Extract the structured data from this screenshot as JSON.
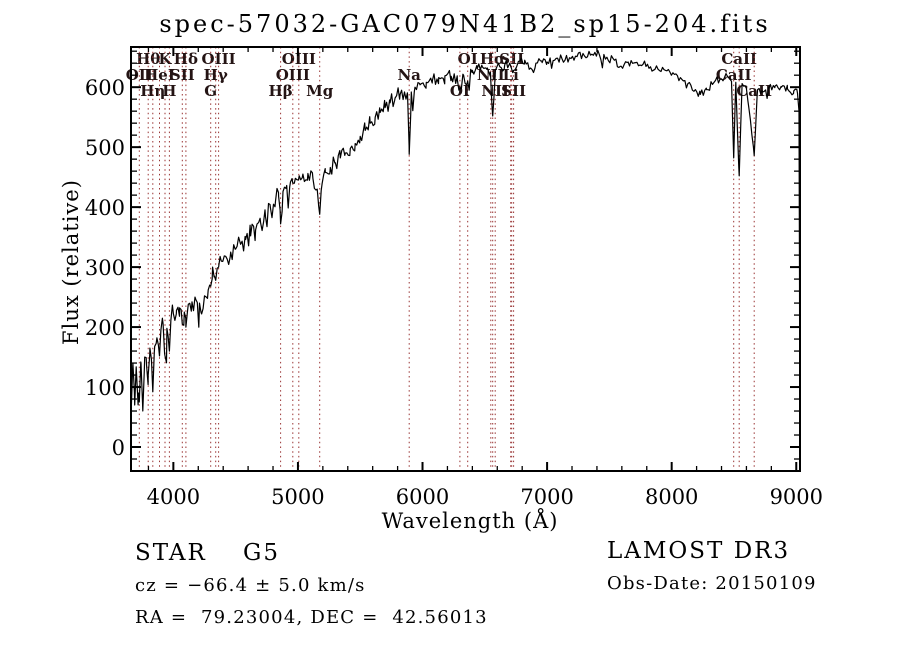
{
  "title": "spec-57032-GAC079N41B2_sp15-204.fits",
  "colors": {
    "background": "#ffffff",
    "spectrum": "#000000",
    "axis": "#000000",
    "marker_line": "#993333",
    "marker_label": "#241414"
  },
  "footer": {
    "class_label": "STAR",
    "subclass_label": "G5",
    "cz_line": "cz = −66.4 ± 5.0 km/s",
    "radec_line": "RA =  79.23004, DEC =  42.56013",
    "survey": "LAMOST DR3",
    "obs_date": "Obs-Date: 20150109"
  },
  "chart_data": {
    "type": "line",
    "title": "spec-57032-GAC079N41B2_sp15-204.fits",
    "xlabel": "Wavelength (Å)",
    "ylabel": "Flux (relative)",
    "xlim": [
      3660,
      9030
    ],
    "ylim": [
      -40,
      667
    ],
    "xticks": [
      4000,
      5000,
      6000,
      7000,
      8000,
      9000
    ],
    "yticks": [
      0,
      100,
      200,
      300,
      400,
      500,
      600
    ],
    "x_minor_step": 200,
    "y_minor_step": 20,
    "grid": false,
    "legend": "none",
    "line_markers": [
      {
        "label": "Hθ",
        "wavelength": 3798,
        "row": 1
      },
      {
        "label": "K",
        "wavelength": 3933,
        "row": 1
      },
      {
        "label": "Hδ",
        "wavelength": 4101,
        "row": 1
      },
      {
        "label": "OIII",
        "wavelength": 4363,
        "row": 1
      },
      {
        "label": "OIII",
        "wavelength": 5007,
        "row": 1
      },
      {
        "label": "OI",
        "wavelength": 6363,
        "row": 1
      },
      {
        "label": "Hα",
        "wavelength": 6563,
        "row": 1
      },
      {
        "label": "SII",
        "wavelength": 6716,
        "row": 1
      },
      {
        "label": "CaII",
        "wavelength": 8542,
        "row": 1
      },
      {
        "label": "OII",
        "wavelength": 3727,
        "row": 2
      },
      {
        "label": "HeI",
        "wavelength": 3889,
        "row": 2
      },
      {
        "label": "SII",
        "wavelength": 4072,
        "row": 2
      },
      {
        "label": "Hγ",
        "wavelength": 4340,
        "row": 2
      },
      {
        "label": "OIII",
        "wavelength": 4959,
        "row": 2
      },
      {
        "label": "Na",
        "wavelength": 5893,
        "row": 2
      },
      {
        "label": "NII",
        "wavelength": 6548,
        "row": 2
      },
      {
        "label": "Li",
        "wavelength": 6708,
        "row": 2
      },
      {
        "label": "CaII",
        "wavelength": 8498,
        "row": 2
      },
      {
        "label": "Hη",
        "wavelength": 3835,
        "row": 3
      },
      {
        "label": "H",
        "wavelength": 3968,
        "row": 3
      },
      {
        "label": "G",
        "wavelength": 4300,
        "row": 3
      },
      {
        "label": "Hβ",
        "wavelength": 4861,
        "row": 3
      },
      {
        "label": "Mg",
        "wavelength": 5175,
        "row": 3
      },
      {
        "label": "OI",
        "wavelength": 6300,
        "row": 3
      },
      {
        "label": "NII",
        "wavelength": 6583,
        "row": 3
      },
      {
        "label": "SII",
        "wavelength": 6731,
        "row": 3
      },
      {
        "label": "CaII",
        "wavelength": 8662,
        "row": 3
      }
    ],
    "series": [
      {
        "name": "spectrum",
        "anchors": [
          [
            3662,
            60,
            45
          ],
          [
            3675,
            140,
            50
          ],
          [
            3690,
            70,
            45
          ],
          [
            3705,
            120,
            45
          ],
          [
            3720,
            90,
            40
          ],
          [
            3727,
            75,
            35
          ],
          [
            3740,
            140,
            42
          ],
          [
            3755,
            60,
            40
          ],
          [
            3770,
            150,
            40
          ],
          [
            3785,
            135,
            40
          ],
          [
            3798,
            120,
            35
          ],
          [
            3812,
            165,
            40
          ],
          [
            3825,
            140,
            38
          ],
          [
            3835,
            92,
            35
          ],
          [
            3850,
            168,
            38
          ],
          [
            3868,
            182,
            35
          ],
          [
            3880,
            170,
            32
          ],
          [
            3889,
            152,
            30
          ],
          [
            3900,
            195,
            30
          ],
          [
            3918,
            205,
            28
          ],
          [
            3933,
            152,
            24
          ],
          [
            3948,
            198,
            26
          ],
          [
            3958,
            185,
            24
          ],
          [
            3968,
            160,
            24
          ],
          [
            3980,
            212,
            26
          ],
          [
            4000,
            222,
            26
          ],
          [
            4025,
            228,
            26
          ],
          [
            4050,
            232,
            26
          ],
          [
            4072,
            205,
            24
          ],
          [
            4088,
            225,
            24
          ],
          [
            4101,
            200,
            24
          ],
          [
            4120,
            238,
            24
          ],
          [
            4150,
            242,
            24
          ],
          [
            4180,
            246,
            24
          ],
          [
            4210,
            240,
            24
          ],
          [
            4227,
            222,
            22
          ],
          [
            4250,
            252,
            24
          ],
          [
            4280,
            262,
            24
          ],
          [
            4300,
            268,
            22
          ],
          [
            4315,
            300,
            24
          ],
          [
            4330,
            285,
            24
          ],
          [
            4340,
            278,
            22
          ],
          [
            4352,
            298,
            24
          ],
          [
            4363,
            300,
            22
          ],
          [
            4385,
            310,
            24
          ],
          [
            4420,
            318,
            24
          ],
          [
            4460,
            325,
            24
          ],
          [
            4500,
            330,
            26
          ],
          [
            4540,
            338,
            26
          ],
          [
            4580,
            346,
            26
          ],
          [
            4620,
            352,
            26
          ],
          [
            4660,
            362,
            26
          ],
          [
            4700,
            374,
            26
          ],
          [
            4740,
            384,
            26
          ],
          [
            4780,
            398,
            26
          ],
          [
            4820,
            410,
            24
          ],
          [
            4845,
            418,
            22
          ],
          [
            4861,
            372,
            18
          ],
          [
            4880,
            426,
            22
          ],
          [
            4910,
            436,
            22
          ],
          [
            4940,
            442,
            20
          ],
          [
            4959,
            440,
            20
          ],
          [
            4980,
            448,
            20
          ],
          [
            5010,
            452,
            20
          ],
          [
            5040,
            455,
            20
          ],
          [
            5080,
            456,
            20
          ],
          [
            5120,
            448,
            18
          ],
          [
            5155,
            430,
            16
          ],
          [
            5175,
            388,
            14
          ],
          [
            5195,
            440,
            16
          ],
          [
            5220,
            458,
            18
          ],
          [
            5260,
            466,
            18
          ],
          [
            5300,
            474,
            18
          ],
          [
            5340,
            482,
            18
          ],
          [
            5380,
            490,
            18
          ],
          [
            5420,
            498,
            18
          ],
          [
            5460,
            506,
            18
          ],
          [
            5500,
            518,
            18
          ],
          [
            5540,
            528,
            18
          ],
          [
            5580,
            540,
            18
          ],
          [
            5620,
            550,
            18
          ],
          [
            5660,
            558,
            20
          ],
          [
            5700,
            566,
            20
          ],
          [
            5740,
            574,
            20
          ],
          [
            5780,
            582,
            20
          ],
          [
            5820,
            588,
            18
          ],
          [
            5855,
            592,
            16
          ],
          [
            5880,
            585,
            14
          ],
          [
            5893,
            488,
            10
          ],
          [
            5910,
            592,
            15
          ],
          [
            5940,
            600,
            16
          ],
          [
            5980,
            604,
            16
          ],
          [
            6030,
            608,
            16
          ],
          [
            6080,
            612,
            16
          ],
          [
            6130,
            616,
            15
          ],
          [
            6180,
            619,
            14
          ],
          [
            6230,
            618,
            14
          ],
          [
            6280,
            612,
            13
          ],
          [
            6300,
            598,
            11
          ],
          [
            6330,
            620,
            14
          ],
          [
            6363,
            610,
            12
          ],
          [
            6400,
            628,
            14
          ],
          [
            6440,
            631,
            13
          ],
          [
            6480,
            634,
            13
          ],
          [
            6520,
            632,
            12
          ],
          [
            6545,
            625,
            11
          ],
          [
            6563,
            552,
            8
          ],
          [
            6585,
            628,
            11
          ],
          [
            6620,
            634,
            12
          ],
          [
            6660,
            637,
            12
          ],
          [
            6700,
            640,
            12
          ],
          [
            6731,
            628,
            10
          ],
          [
            6770,
            643,
            11
          ],
          [
            6820,
            645,
            11
          ],
          [
            6867,
            632,
            10
          ],
          [
            6910,
            640,
            10
          ],
          [
            6960,
            641,
            10
          ],
          [
            7000,
            642,
            10
          ],
          [
            7060,
            645,
            10
          ],
          [
            7120,
            647,
            10
          ],
          [
            7180,
            649,
            10
          ],
          [
            7240,
            651,
            10
          ],
          [
            7300,
            652,
            10
          ],
          [
            7360,
            655,
            10
          ],
          [
            7420,
            654,
            10
          ],
          [
            7480,
            650,
            10
          ],
          [
            7540,
            645,
            10
          ],
          [
            7594,
            635,
            9
          ],
          [
            7650,
            642,
            9
          ],
          [
            7710,
            641,
            9
          ],
          [
            7770,
            638,
            9
          ],
          [
            7830,
            634,
            9
          ],
          [
            7890,
            630,
            9
          ],
          [
            7950,
            628,
            9
          ],
          [
            8010,
            624,
            9
          ],
          [
            8070,
            616,
            9
          ],
          [
            8130,
            606,
            9
          ],
          [
            8190,
            596,
            10
          ],
          [
            8230,
            588,
            11
          ],
          [
            8280,
            596,
            10
          ],
          [
            8340,
            608,
            9
          ],
          [
            8400,
            614,
            9
          ],
          [
            8450,
            617,
            9
          ],
          [
            8480,
            610,
            8
          ],
          [
            8498,
            482,
            6
          ],
          [
            8515,
            608,
            8
          ],
          [
            8542,
            452,
            6
          ],
          [
            8565,
            606,
            8
          ],
          [
            8600,
            598,
            8
          ],
          [
            8620,
            565,
            7
          ],
          [
            8662,
            486,
            6
          ],
          [
            8690,
            596,
            8
          ],
          [
            8730,
            592,
            8
          ],
          [
            8780,
            598,
            8
          ],
          [
            8830,
            602,
            8
          ],
          [
            8880,
            600,
            8
          ],
          [
            8930,
            597,
            8
          ],
          [
            8980,
            594,
            8
          ],
          [
            9010,
            590,
            8
          ],
          [
            9022,
            560,
            6
          ],
          [
            9026,
            300,
            2
          ],
          [
            9028,
            25,
            2
          ]
        ]
      }
    ]
  }
}
